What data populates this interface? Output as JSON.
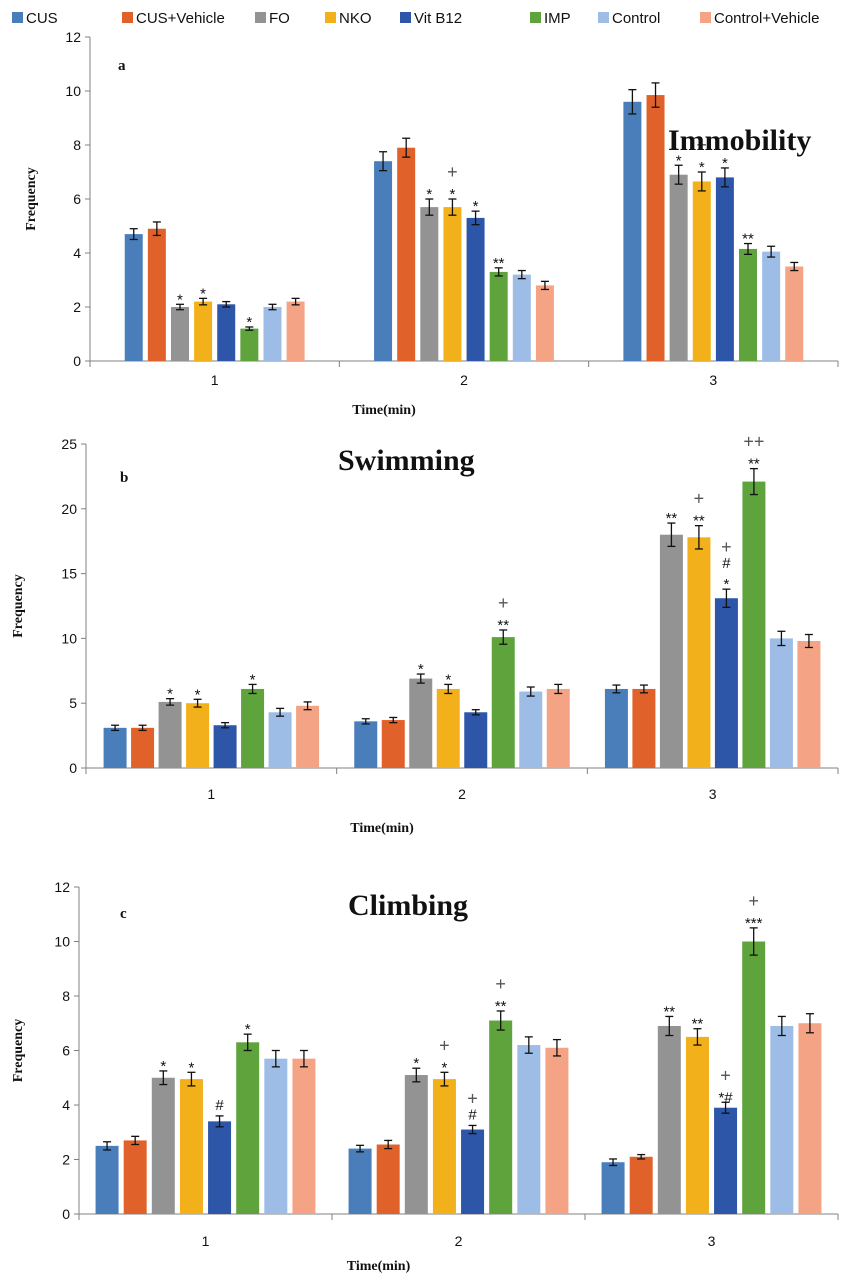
{
  "colors": {
    "CUS": "#4a7ebb",
    "CUS+Vehicle": "#e0622a",
    "FO": "#939393",
    "NKO": "#f2b01a",
    "Vit B12": "#2e56a8",
    "IMP": "#5ea33c",
    "Control": "#9dbde6",
    "Control+Vehicle": "#f4a485"
  },
  "legend": [
    "CUS",
    "CUS+Vehicle",
    "FO",
    "NKO",
    "Vit B12",
    "IMP",
    "Control",
    "Control+Vehicle"
  ],
  "chart_data": [
    {
      "type": "bar",
      "letter": "a",
      "title": "Immobility",
      "xlabel": "Time(min)",
      "ylabel": "Frequency",
      "categories": [
        "1",
        "2",
        "3"
      ],
      "ylim": [
        0,
        12
      ],
      "yticks": [
        0,
        2,
        4,
        6,
        8,
        10,
        12
      ],
      "grid": false,
      "series": [
        {
          "name": "CUS",
          "values": [
            4.7,
            7.4,
            9.6
          ],
          "errors": [
            0.2,
            0.35,
            0.45
          ],
          "sig": [
            "",
            "",
            ""
          ]
        },
        {
          "name": "CUS+Vehicle",
          "values": [
            4.9,
            7.9,
            9.85
          ],
          "errors": [
            0.25,
            0.35,
            0.45
          ],
          "sig": [
            "",
            "",
            ""
          ]
        },
        {
          "name": "FO",
          "values": [
            2.0,
            5.7,
            6.9
          ],
          "errors": [
            0.1,
            0.3,
            0.35
          ],
          "sig": [
            "*",
            "*",
            "*"
          ]
        },
        {
          "name": "NKO",
          "values": [
            2.2,
            5.7,
            6.65
          ],
          "errors": [
            0.12,
            0.3,
            0.35
          ],
          "sig": [
            "*",
            "*\n+",
            "*\n+"
          ]
        },
        {
          "name": "Vit B12",
          "values": [
            2.1,
            5.3,
            6.8
          ],
          "errors": [
            0.1,
            0.25,
            0.35
          ],
          "sig": [
            "",
            "*",
            "*"
          ]
        },
        {
          "name": "IMP",
          "values": [
            1.2,
            3.3,
            4.15
          ],
          "errors": [
            0.06,
            0.15,
            0.2
          ],
          "sig": [
            "*",
            "**",
            "**"
          ]
        },
        {
          "name": "Control",
          "values": [
            2.0,
            3.2,
            4.05
          ],
          "errors": [
            0.1,
            0.15,
            0.2
          ],
          "sig": [
            "",
            "",
            ""
          ]
        },
        {
          "name": "Control+Vehicle",
          "values": [
            2.2,
            2.8,
            3.5
          ],
          "errors": [
            0.12,
            0.15,
            0.15
          ],
          "sig": [
            "",
            "",
            ""
          ]
        }
      ]
    },
    {
      "type": "bar",
      "letter": "b",
      "title": "Swimming",
      "xlabel": "Time(min)",
      "ylabel": "Frequency",
      "categories": [
        "1",
        "2",
        "3"
      ],
      "ylim": [
        0,
        25
      ],
      "yticks": [
        0,
        5,
        10,
        15,
        20,
        25
      ],
      "grid": false,
      "series": [
        {
          "name": "CUS",
          "values": [
            3.1,
            3.6,
            6.1
          ],
          "errors": [
            0.2,
            0.2,
            0.3
          ],
          "sig": [
            "",
            "",
            ""
          ]
        },
        {
          "name": "CUS+Vehicle",
          "values": [
            3.1,
            3.7,
            6.1
          ],
          "errors": [
            0.2,
            0.2,
            0.3
          ],
          "sig": [
            "",
            "",
            ""
          ]
        },
        {
          "name": "FO",
          "values": [
            5.1,
            6.9,
            18.0
          ],
          "errors": [
            0.25,
            0.35,
            0.9
          ],
          "sig": [
            "*",
            "*",
            "**"
          ]
        },
        {
          "name": "NKO",
          "values": [
            5.0,
            6.1,
            17.8
          ],
          "errors": [
            0.3,
            0.35,
            0.9
          ],
          "sig": [
            "*",
            "*",
            "**\n+"
          ]
        },
        {
          "name": "Vit B12",
          "values": [
            3.3,
            4.3,
            13.1
          ],
          "errors": [
            0.2,
            0.2,
            0.7
          ],
          "sig": [
            "",
            "",
            "*\n#\n+"
          ]
        },
        {
          "name": "IMP",
          "values": [
            6.1,
            10.1,
            22.1
          ],
          "errors": [
            0.35,
            0.55,
            1.0
          ],
          "sig": [
            "*",
            "**\n+",
            "**\n++"
          ]
        },
        {
          "name": "Control",
          "values": [
            4.3,
            5.9,
            10.0
          ],
          "errors": [
            0.3,
            0.35,
            0.55
          ],
          "sig": [
            "",
            "",
            ""
          ]
        },
        {
          "name": "Control+Vehicle",
          "values": [
            4.8,
            6.1,
            9.8
          ],
          "errors": [
            0.3,
            0.35,
            0.5
          ],
          "sig": [
            "",
            "",
            ""
          ]
        }
      ]
    },
    {
      "type": "bar",
      "letter": "c",
      "title": "Climbing",
      "xlabel": "Time(min)",
      "ylabel": "Frequency",
      "categories": [
        "1",
        "2",
        "3"
      ],
      "ylim": [
        0,
        12
      ],
      "yticks": [
        0,
        2,
        4,
        6,
        8,
        10,
        12
      ],
      "grid": false,
      "series": [
        {
          "name": "CUS",
          "values": [
            2.5,
            2.4,
            1.9
          ],
          "errors": [
            0.15,
            0.12,
            0.12
          ],
          "sig": [
            "",
            "",
            ""
          ]
        },
        {
          "name": "CUS+Vehicle",
          "values": [
            2.7,
            2.55,
            2.1
          ],
          "errors": [
            0.15,
            0.15,
            0.08
          ],
          "sig": [
            "",
            "",
            ""
          ]
        },
        {
          "name": "FO",
          "values": [
            5.0,
            5.1,
            6.9
          ],
          "errors": [
            0.25,
            0.25,
            0.35
          ],
          "sig": [
            "*",
            "*",
            "**"
          ]
        },
        {
          "name": "NKO",
          "values": [
            4.95,
            4.95,
            6.5
          ],
          "errors": [
            0.25,
            0.25,
            0.3
          ],
          "sig": [
            "*",
            "*\n+",
            "**"
          ]
        },
        {
          "name": "Vit B12",
          "values": [
            3.4,
            3.1,
            3.9
          ],
          "errors": [
            0.2,
            0.15,
            0.2
          ],
          "sig": [
            "#",
            "#\n+",
            "*#\n+"
          ]
        },
        {
          "name": "IMP",
          "values": [
            6.3,
            7.1,
            10.0
          ],
          "errors": [
            0.3,
            0.35,
            0.5
          ],
          "sig": [
            "*",
            "**\n+",
            "***\n+"
          ]
        },
        {
          "name": "Control",
          "values": [
            5.7,
            6.2,
            6.9
          ],
          "errors": [
            0.3,
            0.3,
            0.35
          ],
          "sig": [
            "",
            "",
            ""
          ]
        },
        {
          "name": "Control+Vehicle",
          "values": [
            5.7,
            6.1,
            7.0
          ],
          "errors": [
            0.3,
            0.3,
            0.35
          ],
          "sig": [
            "",
            "",
            ""
          ]
        }
      ]
    }
  ]
}
